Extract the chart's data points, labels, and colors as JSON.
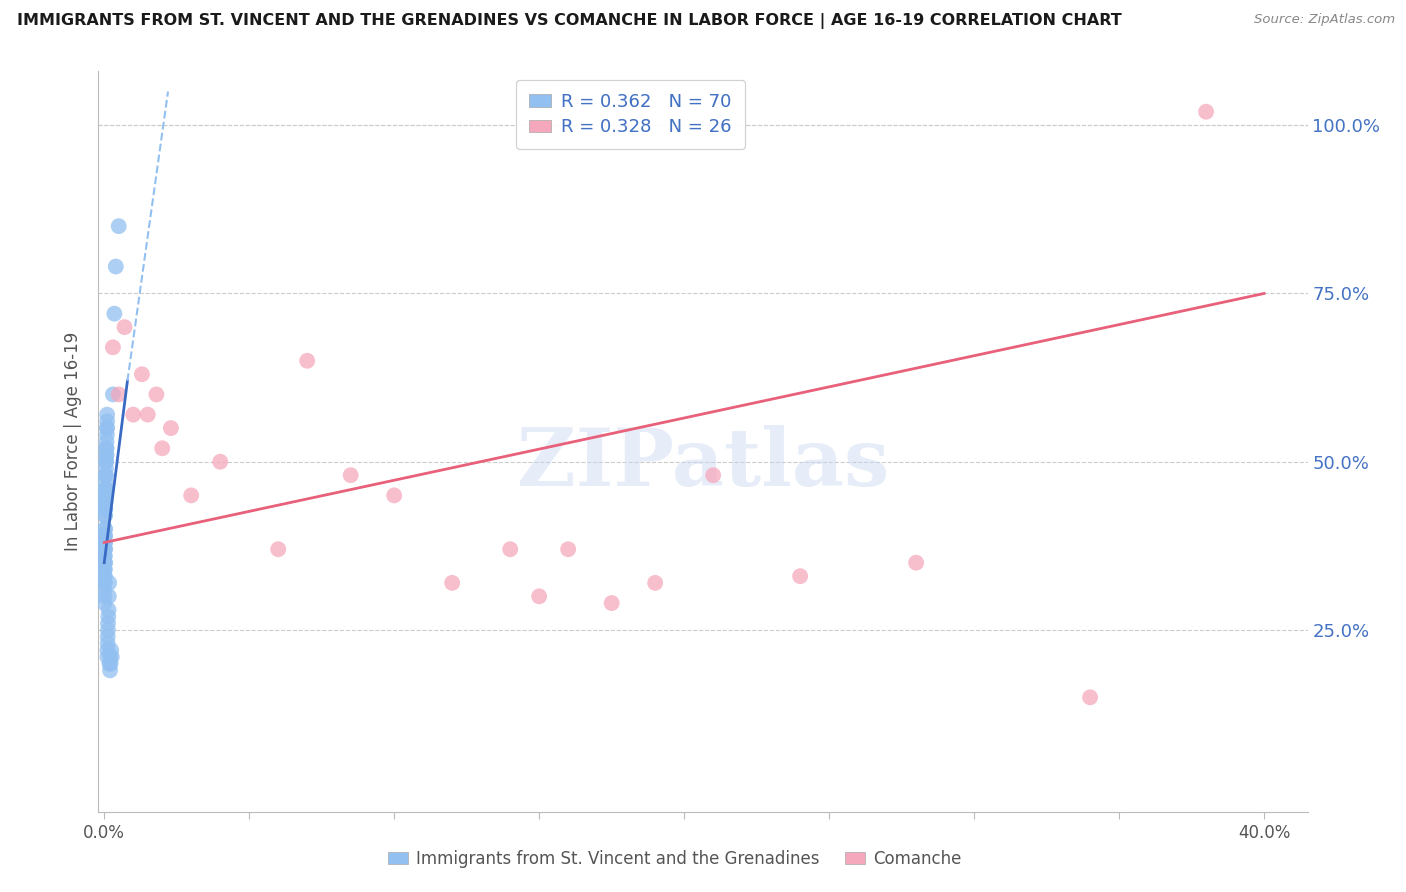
{
  "title": "IMMIGRANTS FROM ST. VINCENT AND THE GRENADINES VS COMANCHE IN LABOR FORCE | AGE 16-19 CORRELATION CHART",
  "source": "Source: ZipAtlas.com",
  "ylabel": "In Labor Force | Age 16-19",
  "xlim": [
    -0.002,
    0.415
  ],
  "ylim": [
    -0.02,
    1.08
  ],
  "xtick_positions": [
    0.0,
    0.05,
    0.1,
    0.15,
    0.2,
    0.25,
    0.3,
    0.35,
    0.4
  ],
  "xtick_labels": [
    "0.0%",
    "",
    "",
    "",
    "",
    "",
    "",
    "",
    "40.0%"
  ],
  "ytick_positions": [
    0.0,
    0.25,
    0.5,
    0.75,
    1.0
  ],
  "ytick_labels_right": [
    "",
    "25.0%",
    "50.0%",
    "75.0%",
    "100.0%"
  ],
  "blue_R": 0.362,
  "blue_N": 70,
  "pink_R": 0.328,
  "pink_N": 26,
  "blue_color": "#92C0F0",
  "pink_color": "#F5A8BC",
  "blue_trend_color": "#3A6BC4",
  "pink_trend_color": "#E8607A",
  "watermark": "ZIPatlas",
  "legend_label_blue": "Immigrants from St. Vincent and the Grenadines",
  "legend_label_pink": "Comanche",
  "blue_x": [
    0.0001,
    0.0001,
    0.0001,
    0.0001,
    0.0001,
    0.0001,
    0.0001,
    0.0001,
    0.0001,
    0.0001,
    0.0002,
    0.0002,
    0.0002,
    0.0002,
    0.0002,
    0.0002,
    0.0002,
    0.0002,
    0.0002,
    0.0002,
    0.0003,
    0.0003,
    0.0003,
    0.0003,
    0.0003,
    0.0003,
    0.0003,
    0.0003,
    0.0004,
    0.0004,
    0.0004,
    0.0004,
    0.0005,
    0.0005,
    0.0005,
    0.0005,
    0.0006,
    0.0006,
    0.0006,
    0.0007,
    0.0007,
    0.0007,
    0.0008,
    0.0008,
    0.0008,
    0.0009,
    0.0009,
    0.001,
    0.001,
    0.001,
    0.0011,
    0.0011,
    0.0012,
    0.0012,
    0.0013,
    0.0013,
    0.0014,
    0.0015,
    0.0016,
    0.0017,
    0.0018,
    0.002,
    0.0021,
    0.0022,
    0.0024,
    0.0026,
    0.003,
    0.0035,
    0.004,
    0.005
  ],
  "blue_y": [
    0.38,
    0.37,
    0.36,
    0.35,
    0.34,
    0.33,
    0.32,
    0.31,
    0.3,
    0.29,
    0.4,
    0.39,
    0.38,
    0.37,
    0.36,
    0.35,
    0.34,
    0.33,
    0.32,
    0.42,
    0.44,
    0.43,
    0.42,
    0.4,
    0.39,
    0.38,
    0.37,
    0.35,
    0.46,
    0.45,
    0.44,
    0.43,
    0.48,
    0.47,
    0.46,
    0.45,
    0.5,
    0.49,
    0.48,
    0.52,
    0.51,
    0.5,
    0.53,
    0.52,
    0.51,
    0.55,
    0.54,
    0.57,
    0.56,
    0.55,
    0.22,
    0.21,
    0.24,
    0.23,
    0.26,
    0.25,
    0.27,
    0.28,
    0.3,
    0.32,
    0.2,
    0.19,
    0.21,
    0.2,
    0.22,
    0.21,
    0.6,
    0.72,
    0.79,
    0.85
  ],
  "pink_x": [
    0.003,
    0.005,
    0.007,
    0.01,
    0.013,
    0.015,
    0.018,
    0.02,
    0.023,
    0.03,
    0.04,
    0.06,
    0.07,
    0.085,
    0.1,
    0.12,
    0.14,
    0.15,
    0.16,
    0.175,
    0.19,
    0.21,
    0.24,
    0.28,
    0.34,
    0.38
  ],
  "pink_y": [
    0.67,
    0.6,
    0.7,
    0.57,
    0.63,
    0.57,
    0.6,
    0.52,
    0.55,
    0.45,
    0.5,
    0.37,
    0.65,
    0.48,
    0.45,
    0.32,
    0.37,
    0.3,
    0.37,
    0.29,
    0.32,
    0.48,
    0.33,
    0.35,
    0.15,
    1.02
  ],
  "pink_trend_x0": 0.0,
  "pink_trend_y0": 0.38,
  "pink_trend_x1": 0.4,
  "pink_trend_y1": 0.75,
  "blue_trend_solid_x0": 0.0,
  "blue_trend_solid_y0": 0.35,
  "blue_trend_solid_x1": 0.008,
  "blue_trend_solid_y1": 0.62,
  "blue_trend_dash_x0": 0.008,
  "blue_trend_dash_y0": 0.62,
  "blue_trend_dash_x1": 0.022,
  "blue_trend_dash_y1": 1.05
}
